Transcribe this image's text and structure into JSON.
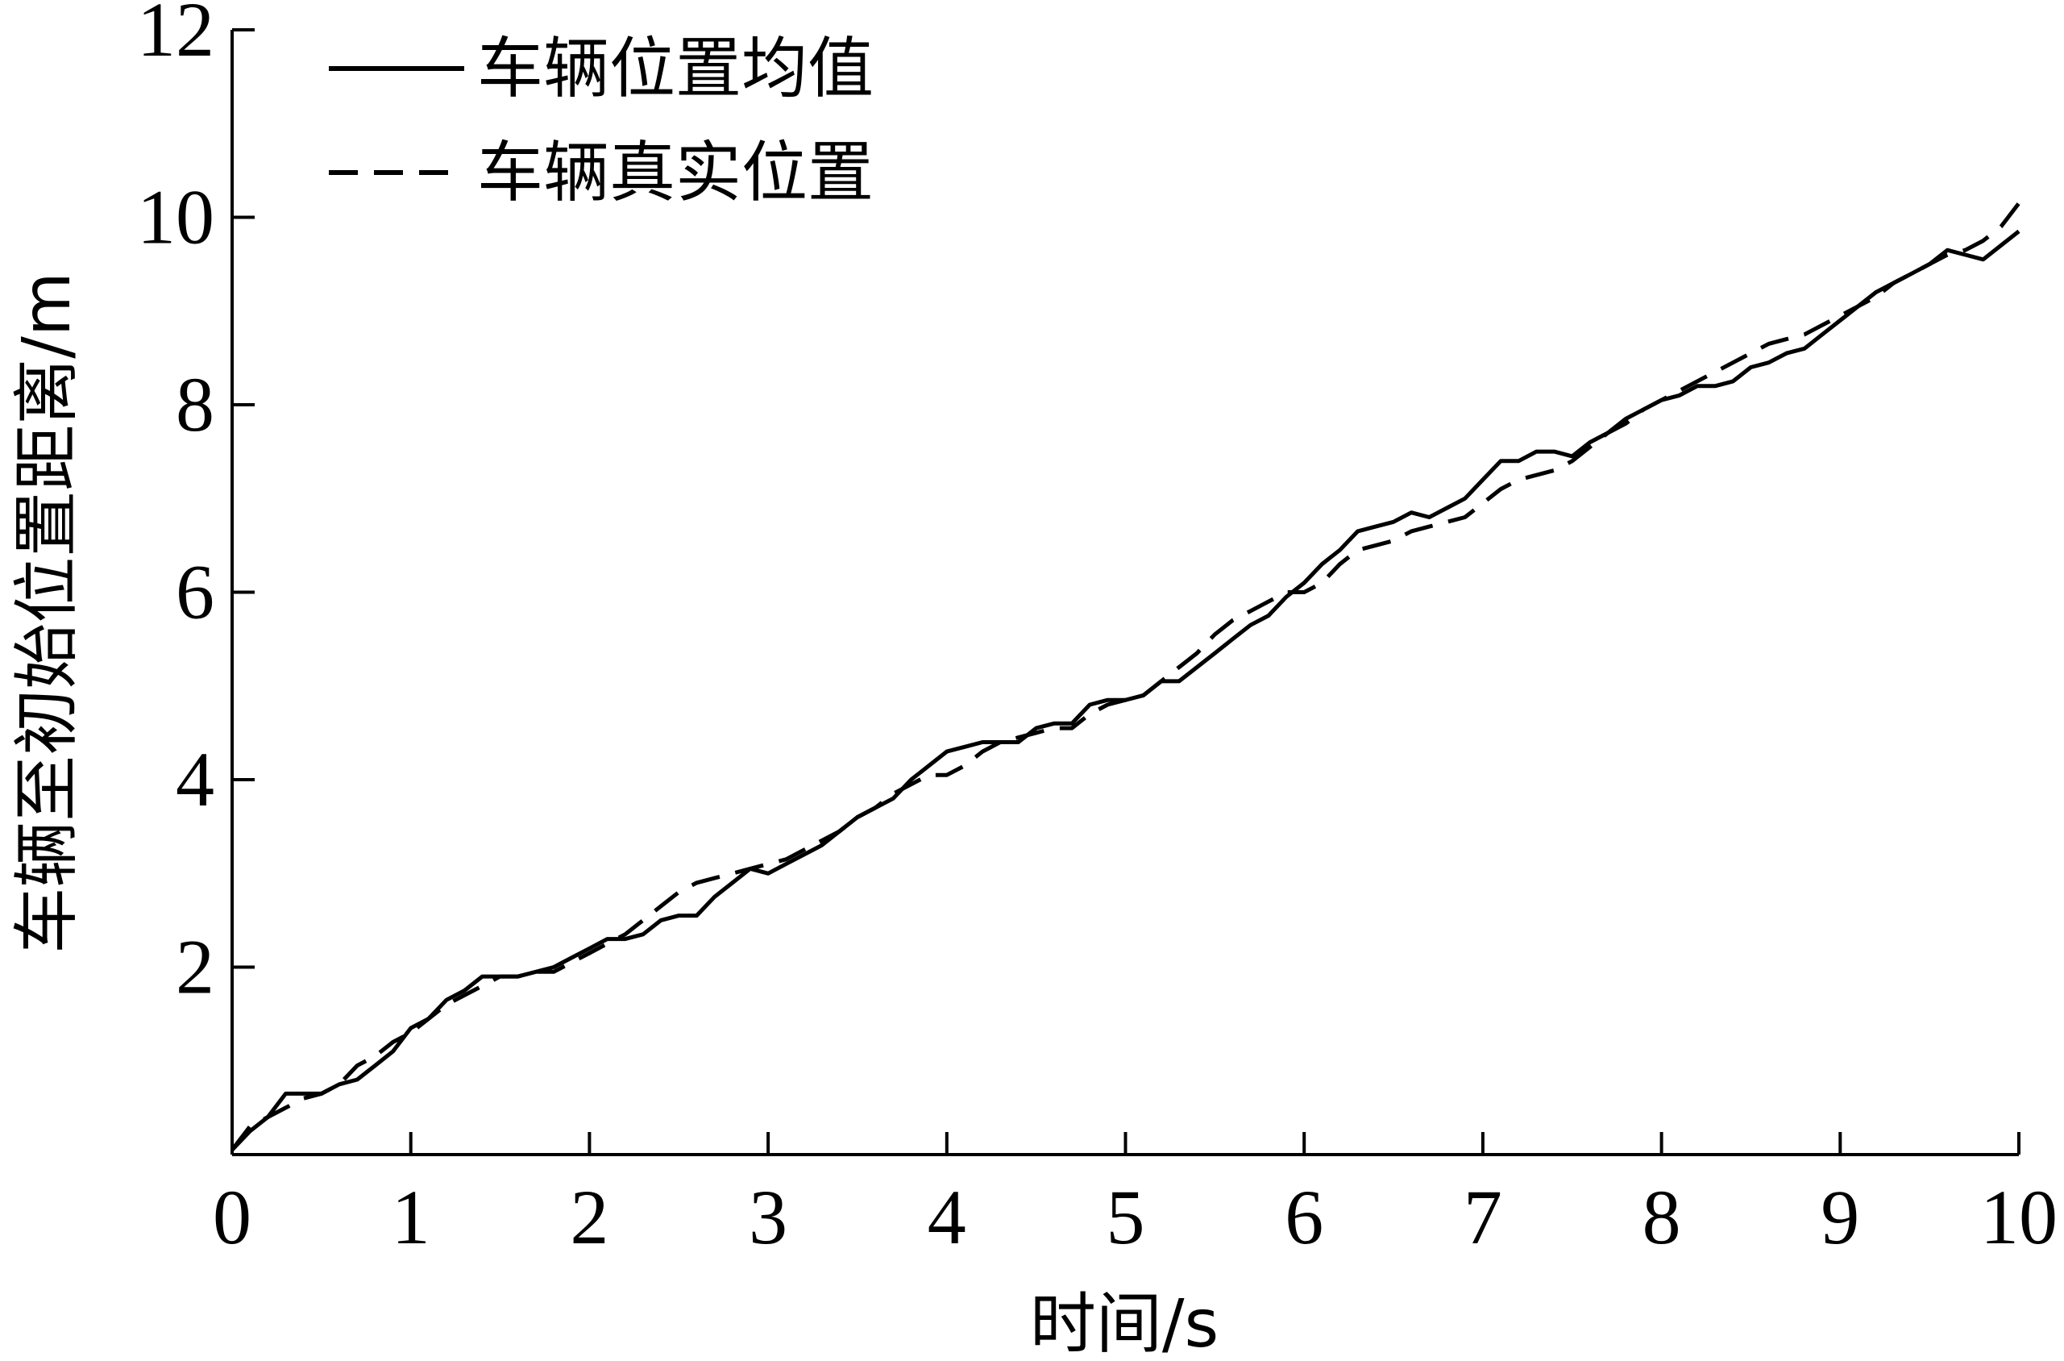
{
  "chart_data": {
    "type": "line",
    "title": "",
    "xlabel": "时间/s",
    "ylabel": "车辆至初始位置距离/m",
    "xlim": [
      0,
      10
    ],
    "ylim": [
      0,
      12
    ],
    "x_ticks": [
      "0",
      "1",
      "2",
      "3",
      "4",
      "5",
      "6",
      "7",
      "8",
      "9",
      "10"
    ],
    "y_ticks": [
      "2",
      "4",
      "6",
      "8",
      "10",
      "12"
    ],
    "grid": false,
    "legend_position": "top-left",
    "series": [
      {
        "name": "车辆位置均值",
        "style": "solid",
        "color": "#000000",
        "x": [
          0,
          0.1,
          0.2,
          0.3,
          0.4,
          0.5,
          0.6,
          0.7,
          0.8,
          0.9,
          1.0,
          1.1,
          1.2,
          1.3,
          1.4,
          1.5,
          1.6,
          1.7,
          1.8,
          1.9,
          2.0,
          2.1,
          2.2,
          2.3,
          2.4,
          2.5,
          2.6,
          2.7,
          2.8,
          2.9,
          3.0,
          3.1,
          3.2,
          3.3,
          3.4,
          3.5,
          3.6,
          3.7,
          3.8,
          3.9,
          4.0,
          4.1,
          4.2,
          4.3,
          4.4,
          4.5,
          4.6,
          4.7,
          4.8,
          4.9,
          5.0,
          5.1,
          5.2,
          5.3,
          5.4,
          5.5,
          5.6,
          5.7,
          5.8,
          5.9,
          6.0,
          6.1,
          6.2,
          6.3,
          6.4,
          6.5,
          6.6,
          6.7,
          6.8,
          6.9,
          7.0,
          7.1,
          7.2,
          7.3,
          7.4,
          7.5,
          7.6,
          7.7,
          7.8,
          7.9,
          8.0,
          8.1,
          8.2,
          8.3,
          8.4,
          8.5,
          8.6,
          8.7,
          8.8,
          8.9,
          9.0,
          9.1,
          9.2,
          9.3,
          9.4,
          9.5,
          9.6,
          9.7,
          9.8,
          9.9,
          10.0
        ],
        "values": [
          0.05,
          0.25,
          0.4,
          0.65,
          0.65,
          0.65,
          0.75,
          0.8,
          0.95,
          1.1,
          1.35,
          1.45,
          1.65,
          1.75,
          1.9,
          1.9,
          1.9,
          1.95,
          2.0,
          2.1,
          2.2,
          2.3,
          2.3,
          2.35,
          2.5,
          2.55,
          2.55,
          2.75,
          2.9,
          3.05,
          3.0,
          3.1,
          3.2,
          3.3,
          3.45,
          3.6,
          3.7,
          3.8,
          4.0,
          4.15,
          4.3,
          4.35,
          4.4,
          4.4,
          4.4,
          4.55,
          4.6,
          4.6,
          4.8,
          4.85,
          4.85,
          4.9,
          5.05,
          5.05,
          5.2,
          5.35,
          5.5,
          5.65,
          5.75,
          5.95,
          6.1,
          6.3,
          6.45,
          6.65,
          6.7,
          6.75,
          6.85,
          6.8,
          6.9,
          7.0,
          7.2,
          7.4,
          7.4,
          7.5,
          7.5,
          7.45,
          7.6,
          7.7,
          7.85,
          7.95,
          8.05,
          8.1,
          8.2,
          8.2,
          8.25,
          8.4,
          8.45,
          8.55,
          8.6,
          8.75,
          8.9,
          9.05,
          9.2,
          9.3,
          9.4,
          9.5,
          9.65,
          9.6,
          9.55,
          9.7,
          9.85
        ]
      },
      {
        "name": "车辆真实位置",
        "style": "dashed",
        "color": "#000000",
        "x": [
          0,
          0.1,
          0.2,
          0.3,
          0.4,
          0.5,
          0.6,
          0.7,
          0.8,
          0.9,
          1.0,
          1.1,
          1.2,
          1.3,
          1.4,
          1.5,
          1.6,
          1.7,
          1.8,
          1.9,
          2.0,
          2.1,
          2.2,
          2.3,
          2.4,
          2.5,
          2.6,
          2.7,
          2.8,
          2.9,
          3.0,
          3.1,
          3.2,
          3.3,
          3.4,
          3.5,
          3.6,
          3.7,
          3.8,
          3.9,
          4.0,
          4.1,
          4.2,
          4.3,
          4.4,
          4.5,
          4.6,
          4.7,
          4.8,
          4.9,
          5.0,
          5.1,
          5.2,
          5.3,
          5.4,
          5.5,
          5.6,
          5.7,
          5.8,
          5.9,
          6.0,
          6.1,
          6.2,
          6.3,
          6.4,
          6.5,
          6.6,
          6.7,
          6.8,
          6.9,
          7.0,
          7.1,
          7.2,
          7.3,
          7.4,
          7.5,
          7.6,
          7.7,
          7.8,
          7.9,
          8.0,
          8.1,
          8.2,
          8.3,
          8.4,
          8.5,
          8.6,
          8.7,
          8.8,
          8.9,
          9.0,
          9.1,
          9.2,
          9.3,
          9.4,
          9.5,
          9.6,
          9.7,
          9.8,
          9.9,
          10.0
        ],
        "values": [
          0.05,
          0.3,
          0.4,
          0.5,
          0.6,
          0.65,
          0.75,
          0.95,
          1.05,
          1.2,
          1.3,
          1.45,
          1.6,
          1.7,
          1.8,
          1.9,
          1.9,
          1.95,
          1.95,
          2.05,
          2.15,
          2.25,
          2.35,
          2.5,
          2.65,
          2.8,
          2.9,
          2.95,
          3.0,
          3.05,
          3.1,
          3.15,
          3.25,
          3.35,
          3.45,
          3.6,
          3.7,
          3.85,
          3.95,
          4.05,
          4.05,
          4.15,
          4.3,
          4.4,
          4.45,
          4.5,
          4.55,
          4.55,
          4.7,
          4.8,
          4.85,
          4.9,
          5.05,
          5.2,
          5.35,
          5.55,
          5.7,
          5.8,
          5.9,
          6.0,
          6.0,
          6.1,
          6.3,
          6.45,
          6.5,
          6.55,
          6.65,
          6.7,
          6.75,
          6.8,
          6.95,
          7.1,
          7.2,
          7.25,
          7.3,
          7.4,
          7.55,
          7.7,
          7.8,
          7.95,
          8.05,
          8.15,
          8.25,
          8.35,
          8.45,
          8.55,
          8.65,
          8.7,
          8.75,
          8.85,
          8.95,
          9.05,
          9.15,
          9.3,
          9.4,
          9.5,
          9.6,
          9.65,
          9.75,
          9.9,
          10.15
        ]
      }
    ]
  }
}
